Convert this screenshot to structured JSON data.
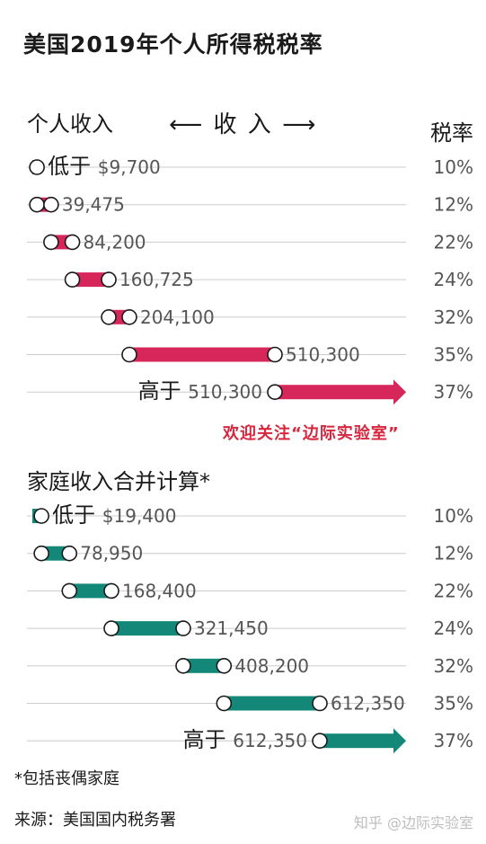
{
  "title": "美国2019年个人所得税税率",
  "header": {
    "individual_label": "个人收入",
    "income_axis_label": "⟵ 收 入 ⟶",
    "rate_label": "税率"
  },
  "promo": "欢迎关注“边际实验室”",
  "family_label": "家庭收入合并计算*",
  "footnote": "*包括丧偶家庭",
  "source": "来源：美国国内税务署",
  "watermark": "知乎 @边际实验室",
  "colors": {
    "individual": "#d7265a",
    "family": "#138878",
    "grid": "#cccccc"
  },
  "chart_data": [
    {
      "type": "bar",
      "name": "个人收入",
      "brackets": [
        {
          "label_prefix": "低于",
          "label": "$9,700",
          "low": 0,
          "high": 9700,
          "rate": "10%"
        },
        {
          "label_prefix": "",
          "label": "39,475",
          "low": 9700,
          "high": 39475,
          "rate": "12%"
        },
        {
          "label_prefix": "",
          "label": "84,200",
          "low": 39475,
          "high": 84200,
          "rate": "22%"
        },
        {
          "label_prefix": "",
          "label": "160,725",
          "low": 84200,
          "high": 160725,
          "rate": "24%"
        },
        {
          "label_prefix": "",
          "label": "204,100",
          "low": 160725,
          "high": 204100,
          "rate": "32%"
        },
        {
          "label_prefix": "",
          "label": "510,300",
          "low": 204100,
          "high": 510300,
          "rate": "35%"
        },
        {
          "label_prefix": "高于",
          "label": "510,300",
          "low": 510300,
          "high": null,
          "rate": "37%"
        }
      ]
    },
    {
      "type": "bar",
      "name": "家庭收入合并计算*",
      "brackets": [
        {
          "label_prefix": "低于",
          "label": "$19,400",
          "low": 0,
          "high": 19400,
          "rate": "10%"
        },
        {
          "label_prefix": "",
          "label": "78,950",
          "low": 19400,
          "high": 78950,
          "rate": "12%"
        },
        {
          "label_prefix": "",
          "label": "168,400",
          "low": 78950,
          "high": 168400,
          "rate": "22%"
        },
        {
          "label_prefix": "",
          "label": "321,450",
          "low": 168400,
          "high": 321450,
          "rate": "24%"
        },
        {
          "label_prefix": "",
          "label": "408,200",
          "low": 321450,
          "high": 408200,
          "rate": "32%"
        },
        {
          "label_prefix": "",
          "label": "612,350",
          "low": 408200,
          "high": 612350,
          "rate": "35%"
        },
        {
          "label_prefix": "高于",
          "label": "612,350",
          "low": 612350,
          "high": null,
          "rate": "37%"
        }
      ]
    }
  ]
}
